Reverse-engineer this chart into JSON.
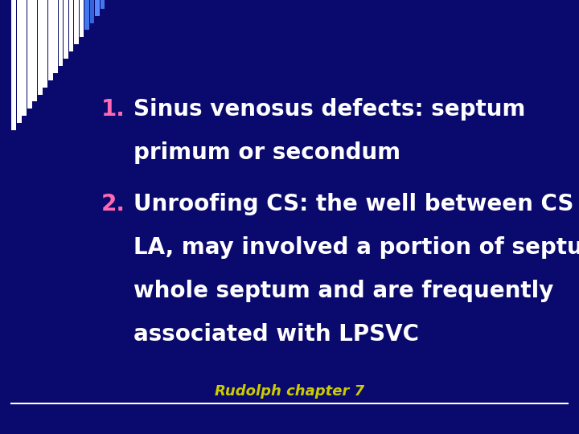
{
  "bg_color": "#0a0a6e",
  "text_color": "#ffffff",
  "number_color": "#ff69b4",
  "footer_color": "#cccc00",
  "line_color": "#ffffff",
  "item1_number": "1.",
  "item1_line1": "Sinus venosus defects: septum",
  "item1_line2": "primum or secondum",
  "item2_number": "2.",
  "item2_line1": "Unroofing CS: the well between CS and",
  "item2_line2": "LA, may involved a portion of septum or",
  "item2_line3": "whole septum and are frequently",
  "item2_line4": "associated with LPSVC",
  "footer": "Rudolph chapter 7",
  "font_size_main": 20,
  "font_size_footer": 13,
  "num_stripes": 18
}
